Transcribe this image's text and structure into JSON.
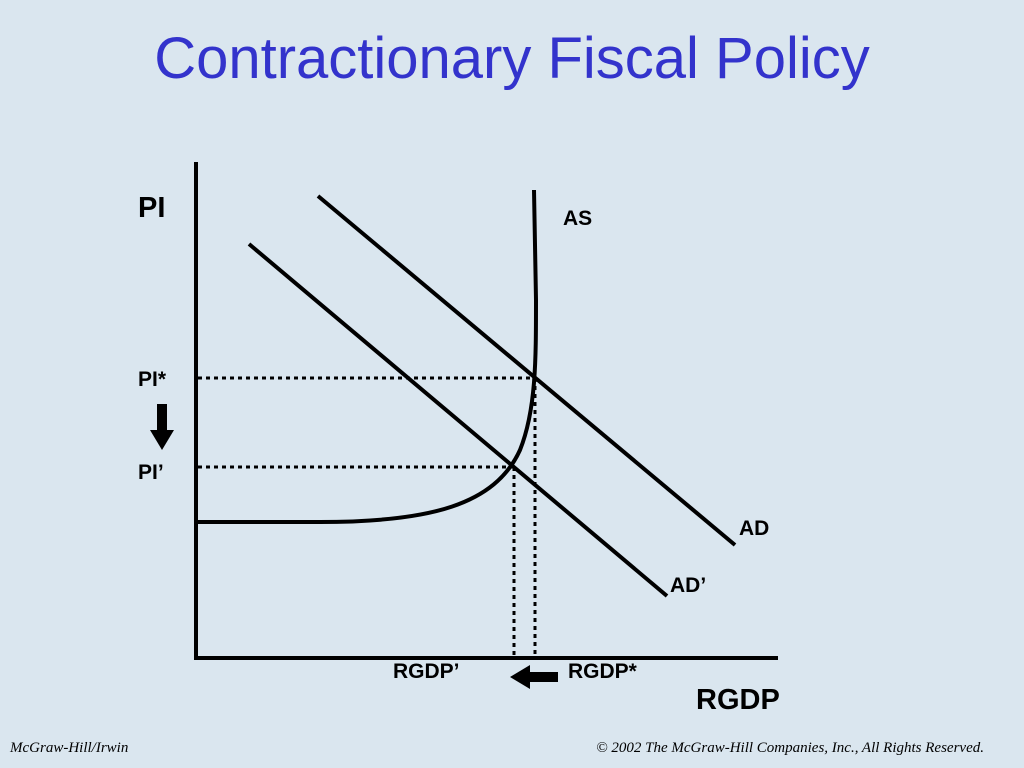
{
  "slide": {
    "title": "Contractionary Fiscal Policy",
    "footer_left": "McGraw-Hill/Irwin",
    "footer_right": "© 2002 The McGraw-Hill Companies, Inc., All Rights Reserved."
  },
  "diagram": {
    "y_axis_label": "PI",
    "x_axis_label": "RGDP",
    "curves": {
      "as_label": "AS",
      "ad_label": "AD",
      "ad_prime_label": "AD’"
    },
    "price_levels": {
      "initial_label": "PI*",
      "new_label": "PI’"
    },
    "output_levels": {
      "initial_label": "RGDP*",
      "new_label": "RGDP’"
    },
    "shift_direction": "AD shifts left: price level falls, output falls",
    "colors": {
      "title": "#3333cc",
      "background": "#dae6ef",
      "lines": "#000000"
    }
  }
}
